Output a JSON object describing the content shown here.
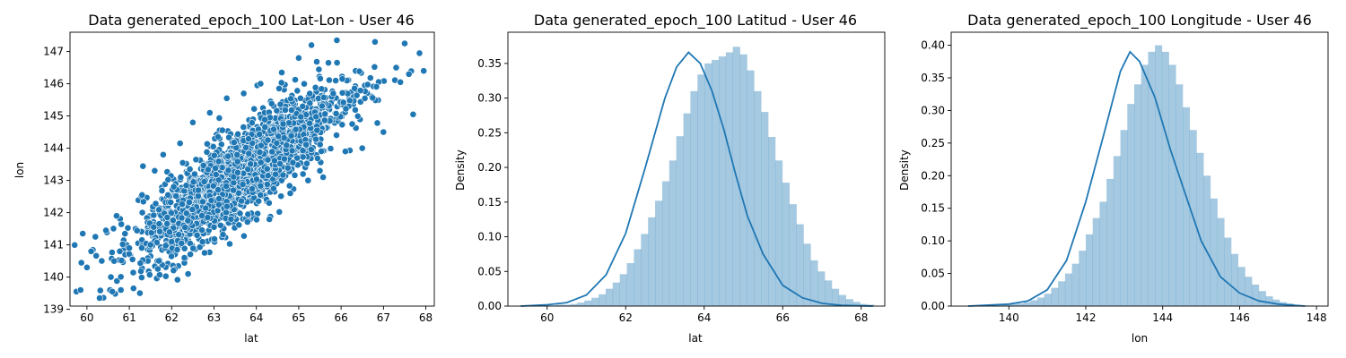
{
  "chart_data": [
    {
      "type": "scatter",
      "title": "Data generated_epoch_100 Lat-Lon - User 46",
      "xlabel": "lat",
      "ylabel": "lon",
      "xlim": [
        59.6,
        68.2
      ],
      "ylim": [
        139.1,
        147.6
      ],
      "xticks": [
        60,
        61,
        62,
        63,
        64,
        65,
        66,
        67,
        68
      ],
      "yticks": [
        139,
        140,
        141,
        142,
        143,
        144,
        145,
        146,
        147
      ],
      "color": "#1f77b4",
      "sample_points": [
        [
          59.75,
          139.55
        ],
        [
          59.85,
          139.6
        ],
        [
          59.9,
          141.35
        ],
        [
          60.0,
          140.3
        ],
        [
          60.1,
          140.8
        ],
        [
          60.2,
          141.25
        ],
        [
          60.3,
          139.35
        ],
        [
          60.35,
          140.5
        ],
        [
          60.45,
          141.45
        ],
        [
          60.6,
          139.55
        ],
        [
          60.7,
          141.9
        ],
        [
          60.8,
          139.6
        ],
        [
          61.0,
          140.9
        ],
        [
          61.1,
          139.65
        ],
        [
          61.25,
          139.5
        ],
        [
          61.3,
          142.55
        ],
        [
          61.5,
          141.0
        ],
        [
          61.6,
          143.3
        ],
        [
          61.7,
          140.5
        ],
        [
          61.8,
          143.8
        ],
        [
          62.0,
          141.1
        ],
        [
          62.2,
          144.15
        ],
        [
          62.3,
          140.6
        ],
        [
          62.5,
          144.8
        ],
        [
          62.6,
          141.3
        ],
        [
          62.9,
          145.1
        ],
        [
          63.0,
          141.55
        ],
        [
          63.3,
          145.55
        ],
        [
          63.4,
          141.8
        ],
        [
          63.7,
          145.7
        ],
        [
          63.8,
          141.95
        ],
        [
          64.1,
          146.0
        ],
        [
          64.3,
          142.3
        ],
        [
          64.6,
          146.35
        ],
        [
          64.8,
          142.6
        ],
        [
          65.0,
          146.8
        ],
        [
          65.1,
          143.2
        ],
        [
          65.3,
          147.2
        ],
        [
          65.5,
          143.3
        ],
        [
          65.7,
          146.65
        ],
        [
          65.9,
          147.35
        ],
        [
          66.1,
          143.9
        ],
        [
          66.5,
          144.0
        ],
        [
          66.8,
          147.3
        ],
        [
          67.0,
          144.5
        ],
        [
          67.3,
          146.5
        ],
        [
          67.5,
          147.25
        ],
        [
          67.6,
          146.3
        ],
        [
          67.7,
          145.05
        ],
        [
          67.85,
          146.95
        ],
        [
          67.95,
          146.4
        ]
      ]
    },
    {
      "type": "bar",
      "title": "Data generated_epoch_100 Latitud - User 46",
      "xlabel": "lat",
      "ylabel": "Density",
      "xlim": [
        59.0,
        68.6
      ],
      "ylim": [
        0,
        0.395
      ],
      "xticks": [
        60,
        62,
        64,
        66,
        68
      ],
      "yticks": [
        0.0,
        0.05,
        0.1,
        0.15,
        0.2,
        0.25,
        0.3,
        0.35
      ],
      "bin_start": 59.33,
      "bin_width": 0.18,
      "values": [
        0.001,
        0.001,
        0.001,
        0.001,
        0.001,
        0.002,
        0.002,
        0.003,
        0.005,
        0.008,
        0.012,
        0.017,
        0.025,
        0.034,
        0.046,
        0.062,
        0.082,
        0.104,
        0.128,
        0.152,
        0.18,
        0.21,
        0.245,
        0.278,
        0.31,
        0.334,
        0.35,
        0.355,
        0.36,
        0.366,
        0.374,
        0.363,
        0.34,
        0.31,
        0.28,
        0.244,
        0.21,
        0.178,
        0.147,
        0.118,
        0.09,
        0.066,
        0.05,
        0.037,
        0.025,
        0.016,
        0.01,
        0.006,
        0.003,
        0.002
      ],
      "kde": [
        [
          59.33,
          0.0
        ],
        [
          60.0,
          0.002
        ],
        [
          60.5,
          0.005
        ],
        [
          61.0,
          0.016
        ],
        [
          61.5,
          0.045
        ],
        [
          62.0,
          0.105
        ],
        [
          62.5,
          0.2
        ],
        [
          63.0,
          0.3
        ],
        [
          63.3,
          0.345
        ],
        [
          63.6,
          0.366
        ],
        [
          63.9,
          0.35
        ],
        [
          64.2,
          0.31
        ],
        [
          64.5,
          0.255
        ],
        [
          64.8,
          0.19
        ],
        [
          65.1,
          0.13
        ],
        [
          65.5,
          0.075
        ],
        [
          66.0,
          0.03
        ],
        [
          66.5,
          0.012
        ],
        [
          67.0,
          0.004
        ],
        [
          67.5,
          0.001
        ],
        [
          68.3,
          0.0
        ]
      ]
    },
    {
      "type": "bar",
      "title": "Data generated_epoch_100 Longitude - User 46",
      "xlabel": "lon",
      "ylabel": "Density",
      "xlim": [
        138.5,
        148.3
      ],
      "ylim": [
        0,
        0.42
      ],
      "xticks": [
        140,
        142,
        144,
        146,
        148
      ],
      "yticks": [
        0.0,
        0.05,
        0.1,
        0.15,
        0.2,
        0.25,
        0.3,
        0.35,
        0.4
      ],
      "bin_start": 138.94,
      "bin_width": 0.18,
      "values": [
        0.001,
        0.001,
        0.001,
        0.001,
        0.001,
        0.002,
        0.003,
        0.004,
        0.006,
        0.009,
        0.013,
        0.019,
        0.028,
        0.038,
        0.05,
        0.065,
        0.085,
        0.11,
        0.135,
        0.16,
        0.195,
        0.23,
        0.27,
        0.31,
        0.34,
        0.37,
        0.39,
        0.4,
        0.39,
        0.37,
        0.34,
        0.305,
        0.27,
        0.235,
        0.2,
        0.165,
        0.135,
        0.105,
        0.08,
        0.06,
        0.045,
        0.033,
        0.023,
        0.015,
        0.01,
        0.006,
        0.004,
        0.002,
        0.001,
        0.001
      ],
      "kde": [
        [
          138.94,
          0.0
        ],
        [
          140.0,
          0.003
        ],
        [
          140.5,
          0.008
        ],
        [
          141.0,
          0.025
        ],
        [
          141.5,
          0.07
        ],
        [
          142.0,
          0.16
        ],
        [
          142.5,
          0.27
        ],
        [
          142.9,
          0.36
        ],
        [
          143.15,
          0.39
        ],
        [
          143.4,
          0.375
        ],
        [
          143.8,
          0.32
        ],
        [
          144.2,
          0.24
        ],
        [
          144.6,
          0.17
        ],
        [
          145.0,
          0.1
        ],
        [
          145.5,
          0.045
        ],
        [
          146.0,
          0.02
        ],
        [
          146.5,
          0.008
        ],
        [
          147.0,
          0.003
        ],
        [
          147.7,
          0.0
        ]
      ]
    }
  ]
}
